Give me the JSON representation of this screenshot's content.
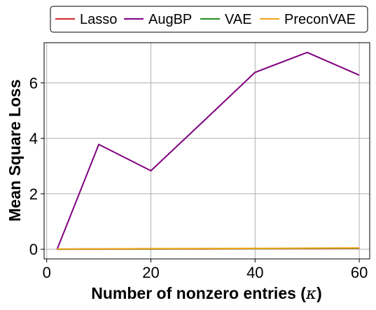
{
  "chart_data": {
    "type": "line",
    "xlabel_main": "Number of nonzero entries (",
    "xlabel_symbol": "κ",
    "xlabel_end": ")",
    "ylabel": "Mean Square Loss",
    "xlim": [
      -0.5,
      62
    ],
    "ylim": [
      -0.35,
      7.45
    ],
    "xticks": [
      0,
      20,
      40,
      60
    ],
    "yticks": [
      0,
      2,
      4,
      6
    ],
    "grid": true,
    "legend_position": "top, outside plot",
    "series": [
      {
        "name": "Lasso",
        "color": "#d62728",
        "x": [
          2,
          10,
          20,
          30,
          40,
          50,
          60
        ],
        "y": [
          0.0,
          0.0,
          0.01,
          0.01,
          0.02,
          0.02,
          0.03
        ]
      },
      {
        "name": "AugBP",
        "color": "#800080",
        "x": [
          2,
          10,
          20,
          30,
          40,
          50,
          60
        ],
        "y": [
          0.0,
          3.78,
          2.83,
          4.6,
          6.38,
          7.1,
          6.28
        ]
      },
      {
        "name": "VAE",
        "color": "#228b22",
        "x": [
          2,
          10,
          20,
          30,
          40,
          50,
          60
        ],
        "y": [
          0.0,
          0.01,
          0.01,
          0.02,
          0.02,
          0.03,
          0.04
        ]
      },
      {
        "name": "PreconVAE",
        "color": "#f2a51a",
        "x": [
          2,
          10,
          20,
          30,
          40,
          50,
          60
        ],
        "y": [
          0.01,
          0.01,
          0.02,
          0.02,
          0.03,
          0.04,
          0.05
        ]
      }
    ]
  }
}
